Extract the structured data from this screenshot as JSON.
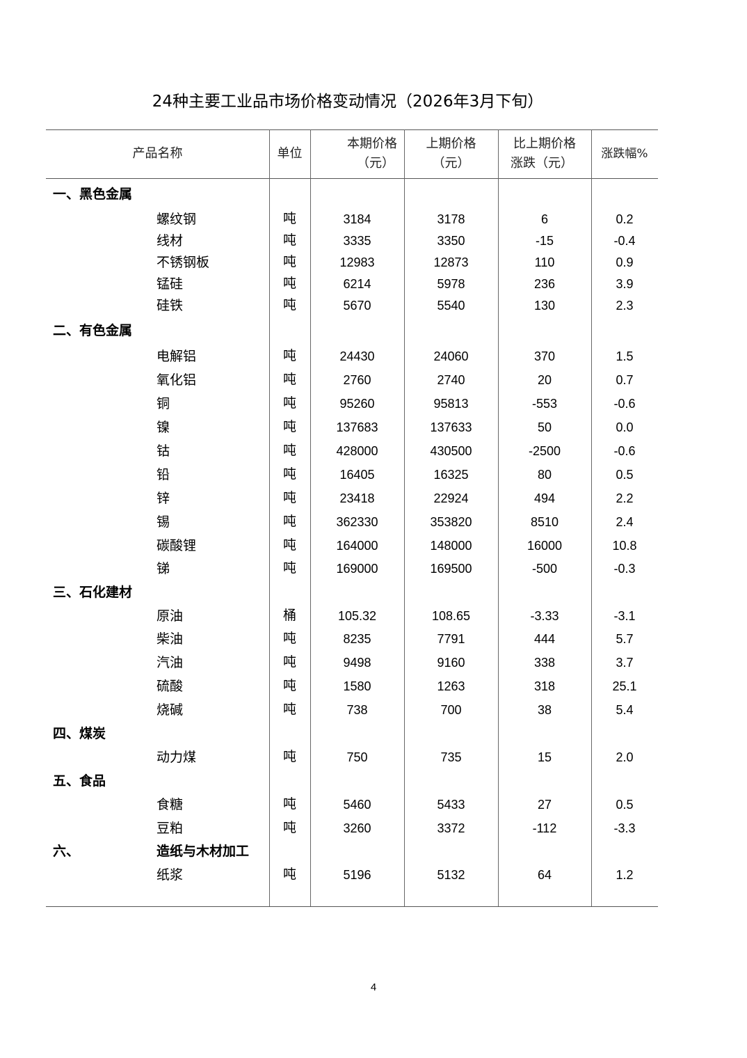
{
  "title": "24种主要工业品市场价格变动情况（2026年3月下旬）",
  "headers": {
    "name": "产品名称",
    "unit": "单位",
    "current_line1": "本期价格",
    "current_line2": "（元）",
    "previous_line1": "上期价格",
    "previous_line2": "（元）",
    "change_line1": "比上期价格",
    "change_line2": "涨跌（元）",
    "pct": "涨跌幅%"
  },
  "rows": [
    {
      "type": "section",
      "label": "一、黑色金属"
    },
    {
      "type": "item",
      "name": "螺纹钢",
      "unit": "吨",
      "current": "3184",
      "previous": "3178",
      "change": "6",
      "pct": "0.2"
    },
    {
      "type": "item",
      "name": "线材",
      "unit": "吨",
      "current": "3335",
      "previous": "3350",
      "change": "-15",
      "pct": "-0.4"
    },
    {
      "type": "item",
      "name": "不锈钢板",
      "unit": "吨",
      "current": "12983",
      "previous": "12873",
      "change": "110",
      "pct": "0.9"
    },
    {
      "type": "item",
      "name": "锰硅",
      "unit": "吨",
      "current": "6214",
      "previous": "5978",
      "change": "236",
      "pct": "3.9"
    },
    {
      "type": "item",
      "name": "硅铁",
      "unit": "吨",
      "current": "5670",
      "previous": "5540",
      "change": "130",
      "pct": "2.3"
    },
    {
      "type": "section",
      "label": "二、有色金属"
    },
    {
      "type": "item",
      "name": "电解铝",
      "unit": "吨",
      "current": "24430",
      "previous": "24060",
      "change": "370",
      "pct": "1.5"
    },
    {
      "type": "item",
      "name": "氧化铝",
      "unit": "吨",
      "current": "2760",
      "previous": "2740",
      "change": "20",
      "pct": "0.7"
    },
    {
      "type": "item",
      "name": "铜",
      "unit": "吨",
      "current": "95260",
      "previous": "95813",
      "change": "-553",
      "pct": "-0.6"
    },
    {
      "type": "item",
      "name": "镍",
      "unit": "吨",
      "current": "137683",
      "previous": "137633",
      "change": "50",
      "pct": "0.0"
    },
    {
      "type": "item",
      "name": "钴",
      "unit": "吨",
      "current": "428000",
      "previous": "430500",
      "change": "-2500",
      "pct": "-0.6"
    },
    {
      "type": "item",
      "name": "铅",
      "unit": "吨",
      "current": "16405",
      "previous": "16325",
      "change": "80",
      "pct": "0.5"
    },
    {
      "type": "item",
      "name": "锌",
      "unit": "吨",
      "current": "23418",
      "previous": "22924",
      "change": "494",
      "pct": "2.2"
    },
    {
      "type": "item",
      "name": "锡",
      "unit": "吨",
      "current": "362330",
      "previous": "353820",
      "change": "8510",
      "pct": "2.4"
    },
    {
      "type": "item",
      "name": "碳酸锂",
      "unit": "吨",
      "current": "164000",
      "previous": "148000",
      "change": "16000",
      "pct": "10.8"
    },
    {
      "type": "item",
      "name": "锑",
      "unit": "吨",
      "current": "169000",
      "previous": "169500",
      "change": "-500",
      "pct": "-0.3"
    },
    {
      "type": "section",
      "label": "三、石化建材"
    },
    {
      "type": "item",
      "name": "原油",
      "unit": "桶",
      "current": "105.32",
      "previous": "108.65",
      "change": "-3.33",
      "pct": "-3.1"
    },
    {
      "type": "item",
      "name": "柴油",
      "unit": "吨",
      "current": "8235",
      "previous": "7791",
      "change": "444",
      "pct": "5.7"
    },
    {
      "type": "item",
      "name": "汽油",
      "unit": "吨",
      "current": "9498",
      "previous": "9160",
      "change": "338",
      "pct": "3.7"
    },
    {
      "type": "item",
      "name": "硫酸",
      "unit": "吨",
      "current": "1580",
      "previous": "1263",
      "change": "318",
      "pct": "25.1"
    },
    {
      "type": "item",
      "name": "烧碱",
      "unit": "吨",
      "current": "738",
      "previous": "700",
      "change": "38",
      "pct": "5.4"
    },
    {
      "type": "section",
      "label": "四、煤炭"
    },
    {
      "type": "item",
      "name": "动力煤",
      "unit": "吨",
      "current": "750",
      "previous": "735",
      "change": "15",
      "pct": "2.0"
    },
    {
      "type": "section",
      "label": "五、食品"
    },
    {
      "type": "item",
      "name": "食糖",
      "unit": "吨",
      "current": "5460",
      "previous": "5433",
      "change": "27",
      "pct": "0.5"
    },
    {
      "type": "item",
      "name": "豆粕",
      "unit": "吨",
      "current": "3260",
      "previous": "3372",
      "change": "-112",
      "pct": "-3.3"
    },
    {
      "type": "section",
      "label": "六、",
      "label2": "造纸与木材加工"
    },
    {
      "type": "item",
      "name": "纸浆",
      "unit": "吨",
      "current": "5196",
      "previous": "5132",
      "change": "64",
      "pct": "1.2"
    }
  ],
  "page_number": "4"
}
